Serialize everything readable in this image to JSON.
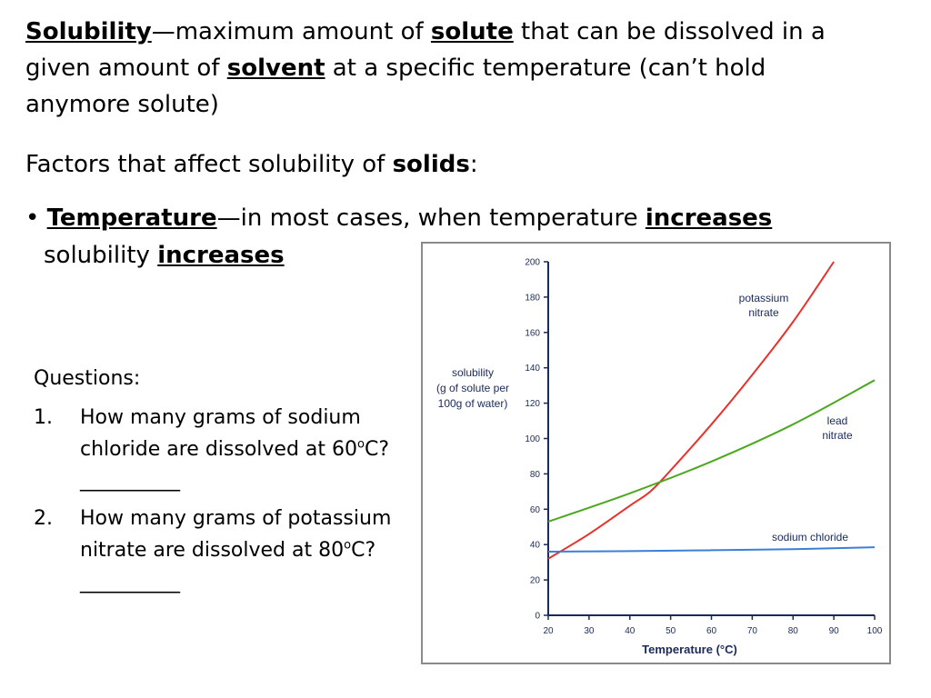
{
  "definition": {
    "term": "Solubility",
    "dash": "—",
    "line1_pre": "maximum amount of ",
    "solute": "solute",
    "line1_post": " that can be dissolved in a",
    "line2_pre": "given amount  of ",
    "solvent": "solvent",
    "line2_post": " at a specific temperature (can’t hold",
    "line3": "anymore solute)"
  },
  "factors": {
    "pre": "Factors that affect solubility of ",
    "solids": "solids",
    "post": ":"
  },
  "bullet": {
    "mark": "• ",
    "term": "Temperature",
    "dash": "—",
    "text1": "in most cases, when temperature ",
    "increases1": "increases",
    "text2": "solubility ",
    "increases2": "increases"
  },
  "questions": {
    "heading": "Questions:",
    "items": [
      {
        "num": "1.",
        "line1": "How many grams of sodium",
        "line2_pre": "chloride are dissolved at 60",
        "sup": "o",
        "line2_post": "C?",
        "blank": "__________"
      },
      {
        "num": "2.",
        "line1": "How many grams of potassium",
        "line2_pre": "nitrate are dissolved at 80",
        "sup": "o",
        "line2_post": "C?",
        "blank": "__________"
      }
    ]
  },
  "chart_data": {
    "type": "line",
    "xlabel": "Temperature (°C)",
    "ylabel_lines": [
      "solubility",
      "(g of solute per",
      "100g of water)"
    ],
    "xlim": [
      20,
      100
    ],
    "ylim": [
      0,
      200
    ],
    "xticks": [
      20,
      30,
      40,
      50,
      60,
      70,
      80,
      90,
      100
    ],
    "yticks": [
      0,
      20,
      40,
      60,
      80,
      100,
      120,
      140,
      160,
      180,
      200
    ],
    "series": [
      {
        "name": "potassium nitrate",
        "label_lines": [
          "potassium",
          "nitrate"
        ],
        "color": "#e8312a",
        "points": [
          [
            20,
            32
          ],
          [
            30,
            46
          ],
          [
            40,
            62
          ],
          [
            45,
            70
          ],
          [
            50,
            82
          ],
          [
            60,
            108
          ],
          [
            70,
            136
          ],
          [
            80,
            166
          ],
          [
            90,
            200
          ]
        ]
      },
      {
        "name": "lead nitrate",
        "label_lines": [
          "lead",
          "nitrate"
        ],
        "color": "#4ca81f",
        "points": [
          [
            20,
            53
          ],
          [
            40,
            69
          ],
          [
            60,
            87
          ],
          [
            80,
            108
          ],
          [
            100,
            133
          ]
        ]
      },
      {
        "name": "sodium chloride",
        "label_lines": [
          "sodium chloride"
        ],
        "color": "#3b7fd6",
        "points": [
          [
            20,
            36
          ],
          [
            40,
            36.3
          ],
          [
            60,
            36.8
          ],
          [
            80,
            37.4
          ],
          [
            100,
            38.5
          ]
        ]
      }
    ]
  }
}
